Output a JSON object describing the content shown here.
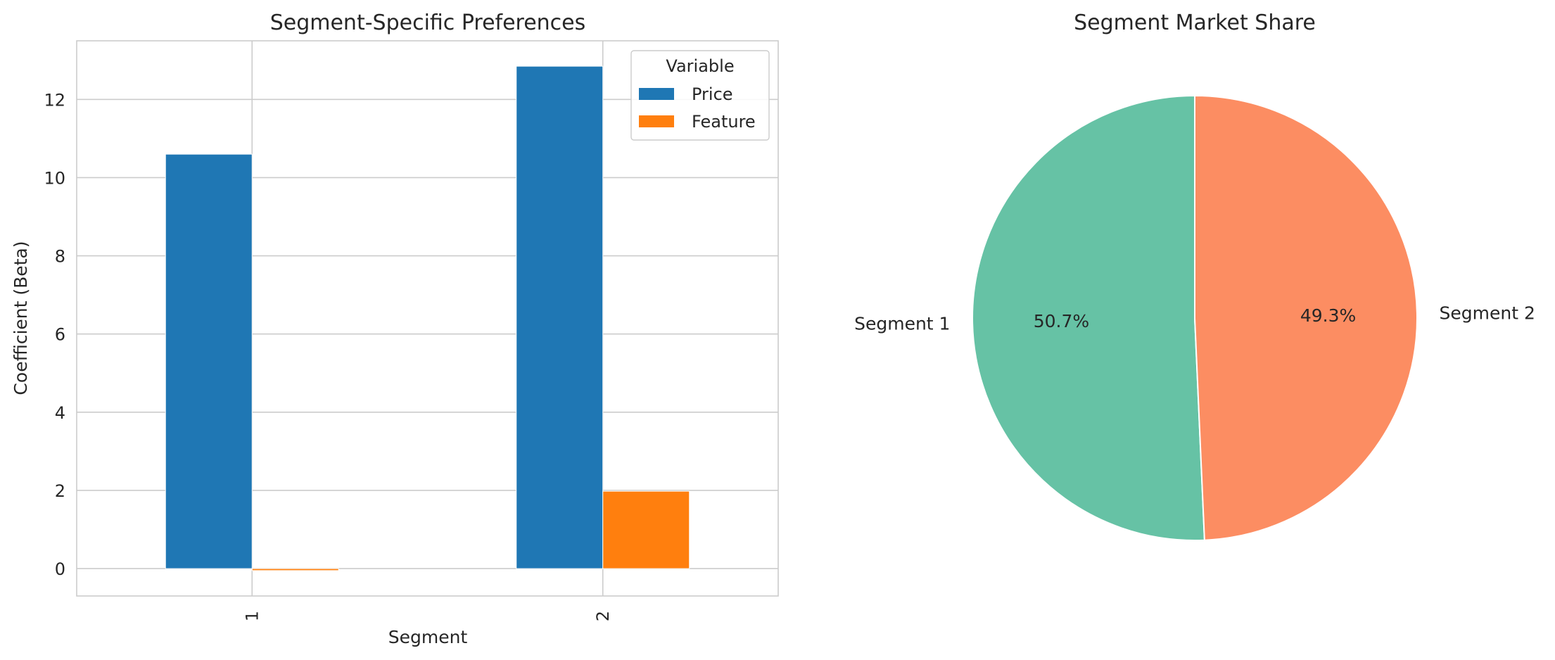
{
  "chart_data": [
    {
      "type": "bar",
      "title": "Segment-Specific Preferences",
      "xlabel": "Segment",
      "ylabel": "Coefficient (Beta)",
      "categories": [
        "1",
        "2"
      ],
      "series": [
        {
          "name": "Price",
          "values": [
            10.6,
            12.85
          ],
          "color": "#1f77b4"
        },
        {
          "name": "Feature",
          "values": [
            -0.05,
            1.98
          ],
          "color": "#ff7f0e"
        }
      ],
      "ylim": [
        -0.7,
        13.5
      ],
      "yticks": [
        "0",
        "2",
        "4",
        "6",
        "8",
        "10",
        "12"
      ],
      "grid": true,
      "legend": {
        "title": "Variable",
        "placement": "top-right"
      }
    },
    {
      "type": "pie",
      "title": "Segment Market Share",
      "labels": [
        "Segment 1",
        "Segment 2"
      ],
      "values": [
        50.7,
        49.3
      ],
      "value_labels": [
        "50.7%",
        "49.3%"
      ],
      "colors": [
        "#66c2a5",
        "#fc8d62"
      ]
    }
  ]
}
